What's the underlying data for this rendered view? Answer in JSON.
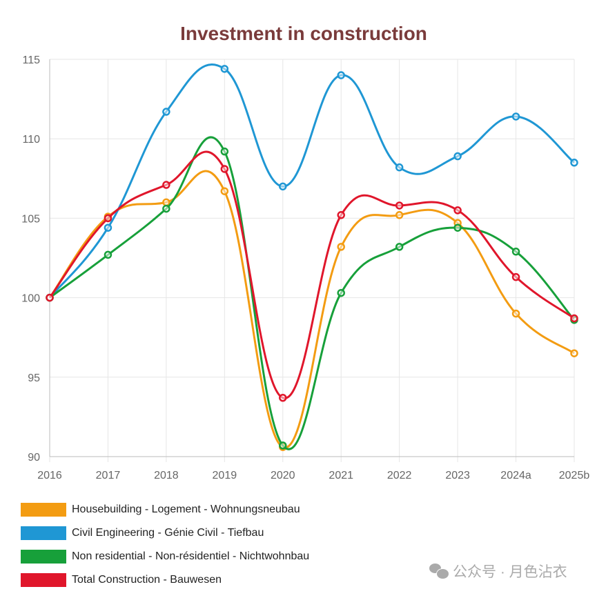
{
  "chart_data": {
    "type": "line",
    "title": "Investment in construction",
    "categories": [
      "2016",
      "2017",
      "2018",
      "2019",
      "2020",
      "2021",
      "2022",
      "2023",
      "2024a",
      "2025b"
    ],
    "ylim": [
      90,
      115
    ],
    "yticks": [
      90,
      95,
      100,
      105,
      110,
      115
    ],
    "grid": true,
    "legend_position": "bottom",
    "series": [
      {
        "name": "Housebuilding - Logement - Wohnungsneubau",
        "color": "#f39c12",
        "values": [
          100,
          105.1,
          106.0,
          106.7,
          90.6,
          103.2,
          105.2,
          104.7,
          99.0,
          96.5
        ]
      },
      {
        "name": "Civil Engineering - Génie Civil - Tiefbau",
        "color": "#1f97d4",
        "values": [
          100,
          104.4,
          111.7,
          114.4,
          107.0,
          114.0,
          108.2,
          108.9,
          111.4,
          108.5
        ]
      },
      {
        "name": "Non residential - Non-résidentiel - Nichtwohnbau",
        "color": "#17a03a",
        "values": [
          100,
          102.7,
          105.6,
          109.2,
          90.7,
          100.3,
          103.2,
          104.4,
          102.9,
          98.6
        ]
      },
      {
        "name": "Total Construction - Bauwesen",
        "color": "#e0162b",
        "values": [
          100,
          105.0,
          107.1,
          108.1,
          93.7,
          105.2,
          105.8,
          105.5,
          101.3,
          98.7
        ]
      }
    ]
  },
  "watermark": "公众号 · 月色沾衣"
}
